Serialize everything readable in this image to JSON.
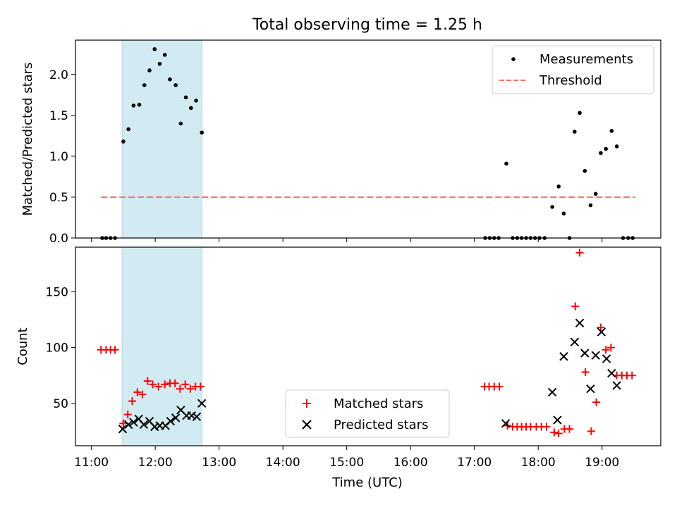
{
  "figure": {
    "title": "Total observing time = 1.25 h",
    "shared_xlabel": "Time (UTC)",
    "shaded_span": {
      "start_hour": 11.48,
      "end_hour": 12.73,
      "color": "#add8e6"
    }
  },
  "chart_data": [
    {
      "type": "scatter",
      "panel": "top",
      "ylabel": "Matched/Predicted stars",
      "xlim": [
        10.75,
        19.92
      ],
      "ylim": [
        0,
        2.42
      ],
      "x_tick_values": [
        11,
        12,
        13,
        14,
        15,
        16,
        17,
        18,
        19
      ],
      "x_tick_labels_shown": false,
      "y_ticks": [
        0.0,
        0.5,
        1.0,
        1.5,
        2.0
      ],
      "y_tick_labels": [
        "0.0",
        "0.5",
        "1.0",
        "1.5",
        "2.0"
      ],
      "legend": {
        "position": "upper right"
      },
      "series": [
        {
          "name": "Measurements",
          "marker": "dot",
          "color": "#000000",
          "points": [
            [
              11.17,
              0
            ],
            [
              11.23,
              0
            ],
            [
              11.3,
              0
            ],
            [
              11.37,
              0
            ],
            [
              11.5,
              1.18
            ],
            [
              11.58,
              1.33
            ],
            [
              11.66,
              1.62
            ],
            [
              11.75,
              1.63
            ],
            [
              11.83,
              1.87
            ],
            [
              11.91,
              2.05
            ],
            [
              11.99,
              2.31
            ],
            [
              12.07,
              2.13
            ],
            [
              12.15,
              2.24
            ],
            [
              12.23,
              1.94
            ],
            [
              12.32,
              1.87
            ],
            [
              12.4,
              1.4
            ],
            [
              12.48,
              1.72
            ],
            [
              12.56,
              1.59
            ],
            [
              12.64,
              1.68
            ],
            [
              12.73,
              1.29
            ],
            [
              17.17,
              0
            ],
            [
              17.24,
              0
            ],
            [
              17.31,
              0
            ],
            [
              17.38,
              0
            ],
            [
              17.5,
              0.91
            ],
            [
              17.6,
              0
            ],
            [
              17.67,
              0
            ],
            [
              17.74,
              0
            ],
            [
              17.81,
              0
            ],
            [
              17.88,
              0
            ],
            [
              17.95,
              0
            ],
            [
              18.02,
              0
            ],
            [
              18.1,
              0
            ],
            [
              18.22,
              0.38
            ],
            [
              18.32,
              0.63
            ],
            [
              18.4,
              0.3
            ],
            [
              18.49,
              0
            ],
            [
              18.57,
              1.3
            ],
            [
              18.65,
              1.53
            ],
            [
              18.73,
              0.82
            ],
            [
              18.82,
              0.4
            ],
            [
              18.9,
              0.54
            ],
            [
              18.98,
              1.04
            ],
            [
              19.06,
              1.09
            ],
            [
              19.15,
              1.31
            ],
            [
              19.23,
              1.12
            ],
            [
              19.33,
              0
            ],
            [
              19.41,
              0
            ],
            [
              19.48,
              0
            ]
          ]
        },
        {
          "name": "Threshold",
          "style": "dashed",
          "color": "#ff6e6e",
          "value": 0.5,
          "x_range": [
            11.15,
            19.52
          ]
        }
      ]
    },
    {
      "type": "scatter",
      "panel": "bottom",
      "ylabel": "Count",
      "xlabel": "Time (UTC)",
      "xlim": [
        10.75,
        19.92
      ],
      "ylim": [
        12,
        190
      ],
      "x_ticks": [
        11,
        12,
        13,
        14,
        15,
        16,
        17,
        18,
        19
      ],
      "x_tick_labels": [
        "11:00",
        "12:00",
        "13:00",
        "14:00",
        "15:00",
        "16:00",
        "17:00",
        "18:00",
        "19:00"
      ],
      "y_ticks": [
        50,
        100,
        150
      ],
      "y_tick_labels": [
        "50",
        "100",
        "150"
      ],
      "legend": {
        "position": "lower center"
      },
      "series": [
        {
          "name": "Matched stars",
          "marker": "plus",
          "color": "#ff0000",
          "points": [
            [
              11.15,
              98
            ],
            [
              11.23,
              98
            ],
            [
              11.3,
              98
            ],
            [
              11.37,
              98
            ],
            [
              11.5,
              32
            ],
            [
              11.57,
              40
            ],
            [
              11.64,
              52
            ],
            [
              11.72,
              60
            ],
            [
              11.8,
              58
            ],
            [
              11.88,
              70
            ],
            [
              11.96,
              67
            ],
            [
              12.05,
              65
            ],
            [
              12.15,
              67
            ],
            [
              12.23,
              68
            ],
            [
              12.31,
              68
            ],
            [
              12.39,
              63
            ],
            [
              12.47,
              67
            ],
            [
              12.55,
              63
            ],
            [
              12.63,
              65
            ],
            [
              12.71,
              65
            ],
            [
              17.16,
              65
            ],
            [
              17.23,
              65
            ],
            [
              17.31,
              65
            ],
            [
              17.39,
              65
            ],
            [
              17.52,
              30
            ],
            [
              17.6,
              29
            ],
            [
              17.67,
              29
            ],
            [
              17.74,
              29
            ],
            [
              17.81,
              29
            ],
            [
              17.88,
              29
            ],
            [
              17.97,
              29
            ],
            [
              18.05,
              29
            ],
            [
              18.13,
              29
            ],
            [
              18.25,
              24
            ],
            [
              18.32,
              23
            ],
            [
              18.41,
              27
            ],
            [
              18.49,
              27
            ],
            [
              18.58,
              137
            ],
            [
              18.65,
              185
            ],
            [
              18.74,
              78
            ],
            [
              18.83,
              25
            ],
            [
              18.91,
              51
            ],
            [
              18.98,
              118
            ],
            [
              19.06,
              98
            ],
            [
              19.14,
              100
            ],
            [
              19.23,
              75
            ],
            [
              19.31,
              75
            ],
            [
              19.39,
              75
            ],
            [
              19.47,
              75
            ]
          ]
        },
        {
          "name": "Predicted stars",
          "marker": "x",
          "color": "#000000",
          "points": [
            [
              11.49,
              27
            ],
            [
              11.58,
              31
            ],
            [
              11.66,
              33
            ],
            [
              11.74,
              36
            ],
            [
              11.82,
              31
            ],
            [
              11.91,
              34
            ],
            [
              11.99,
              29
            ],
            [
              12.07,
              30
            ],
            [
              12.16,
              30
            ],
            [
              12.24,
              34
            ],
            [
              12.32,
              37
            ],
            [
              12.4,
              44
            ],
            [
              12.49,
              39
            ],
            [
              12.57,
              39
            ],
            [
              12.65,
              38
            ],
            [
              12.73,
              50
            ],
            [
              17.49,
              32
            ],
            [
              18.22,
              60
            ],
            [
              18.3,
              35
            ],
            [
              18.4,
              92
            ],
            [
              18.57,
              105
            ],
            [
              18.65,
              122
            ],
            [
              18.73,
              95
            ],
            [
              18.82,
              63
            ],
            [
              18.9,
              93
            ],
            [
              18.99,
              114
            ],
            [
              19.07,
              90
            ],
            [
              19.15,
              77
            ],
            [
              19.23,
              66
            ]
          ]
        }
      ]
    }
  ]
}
